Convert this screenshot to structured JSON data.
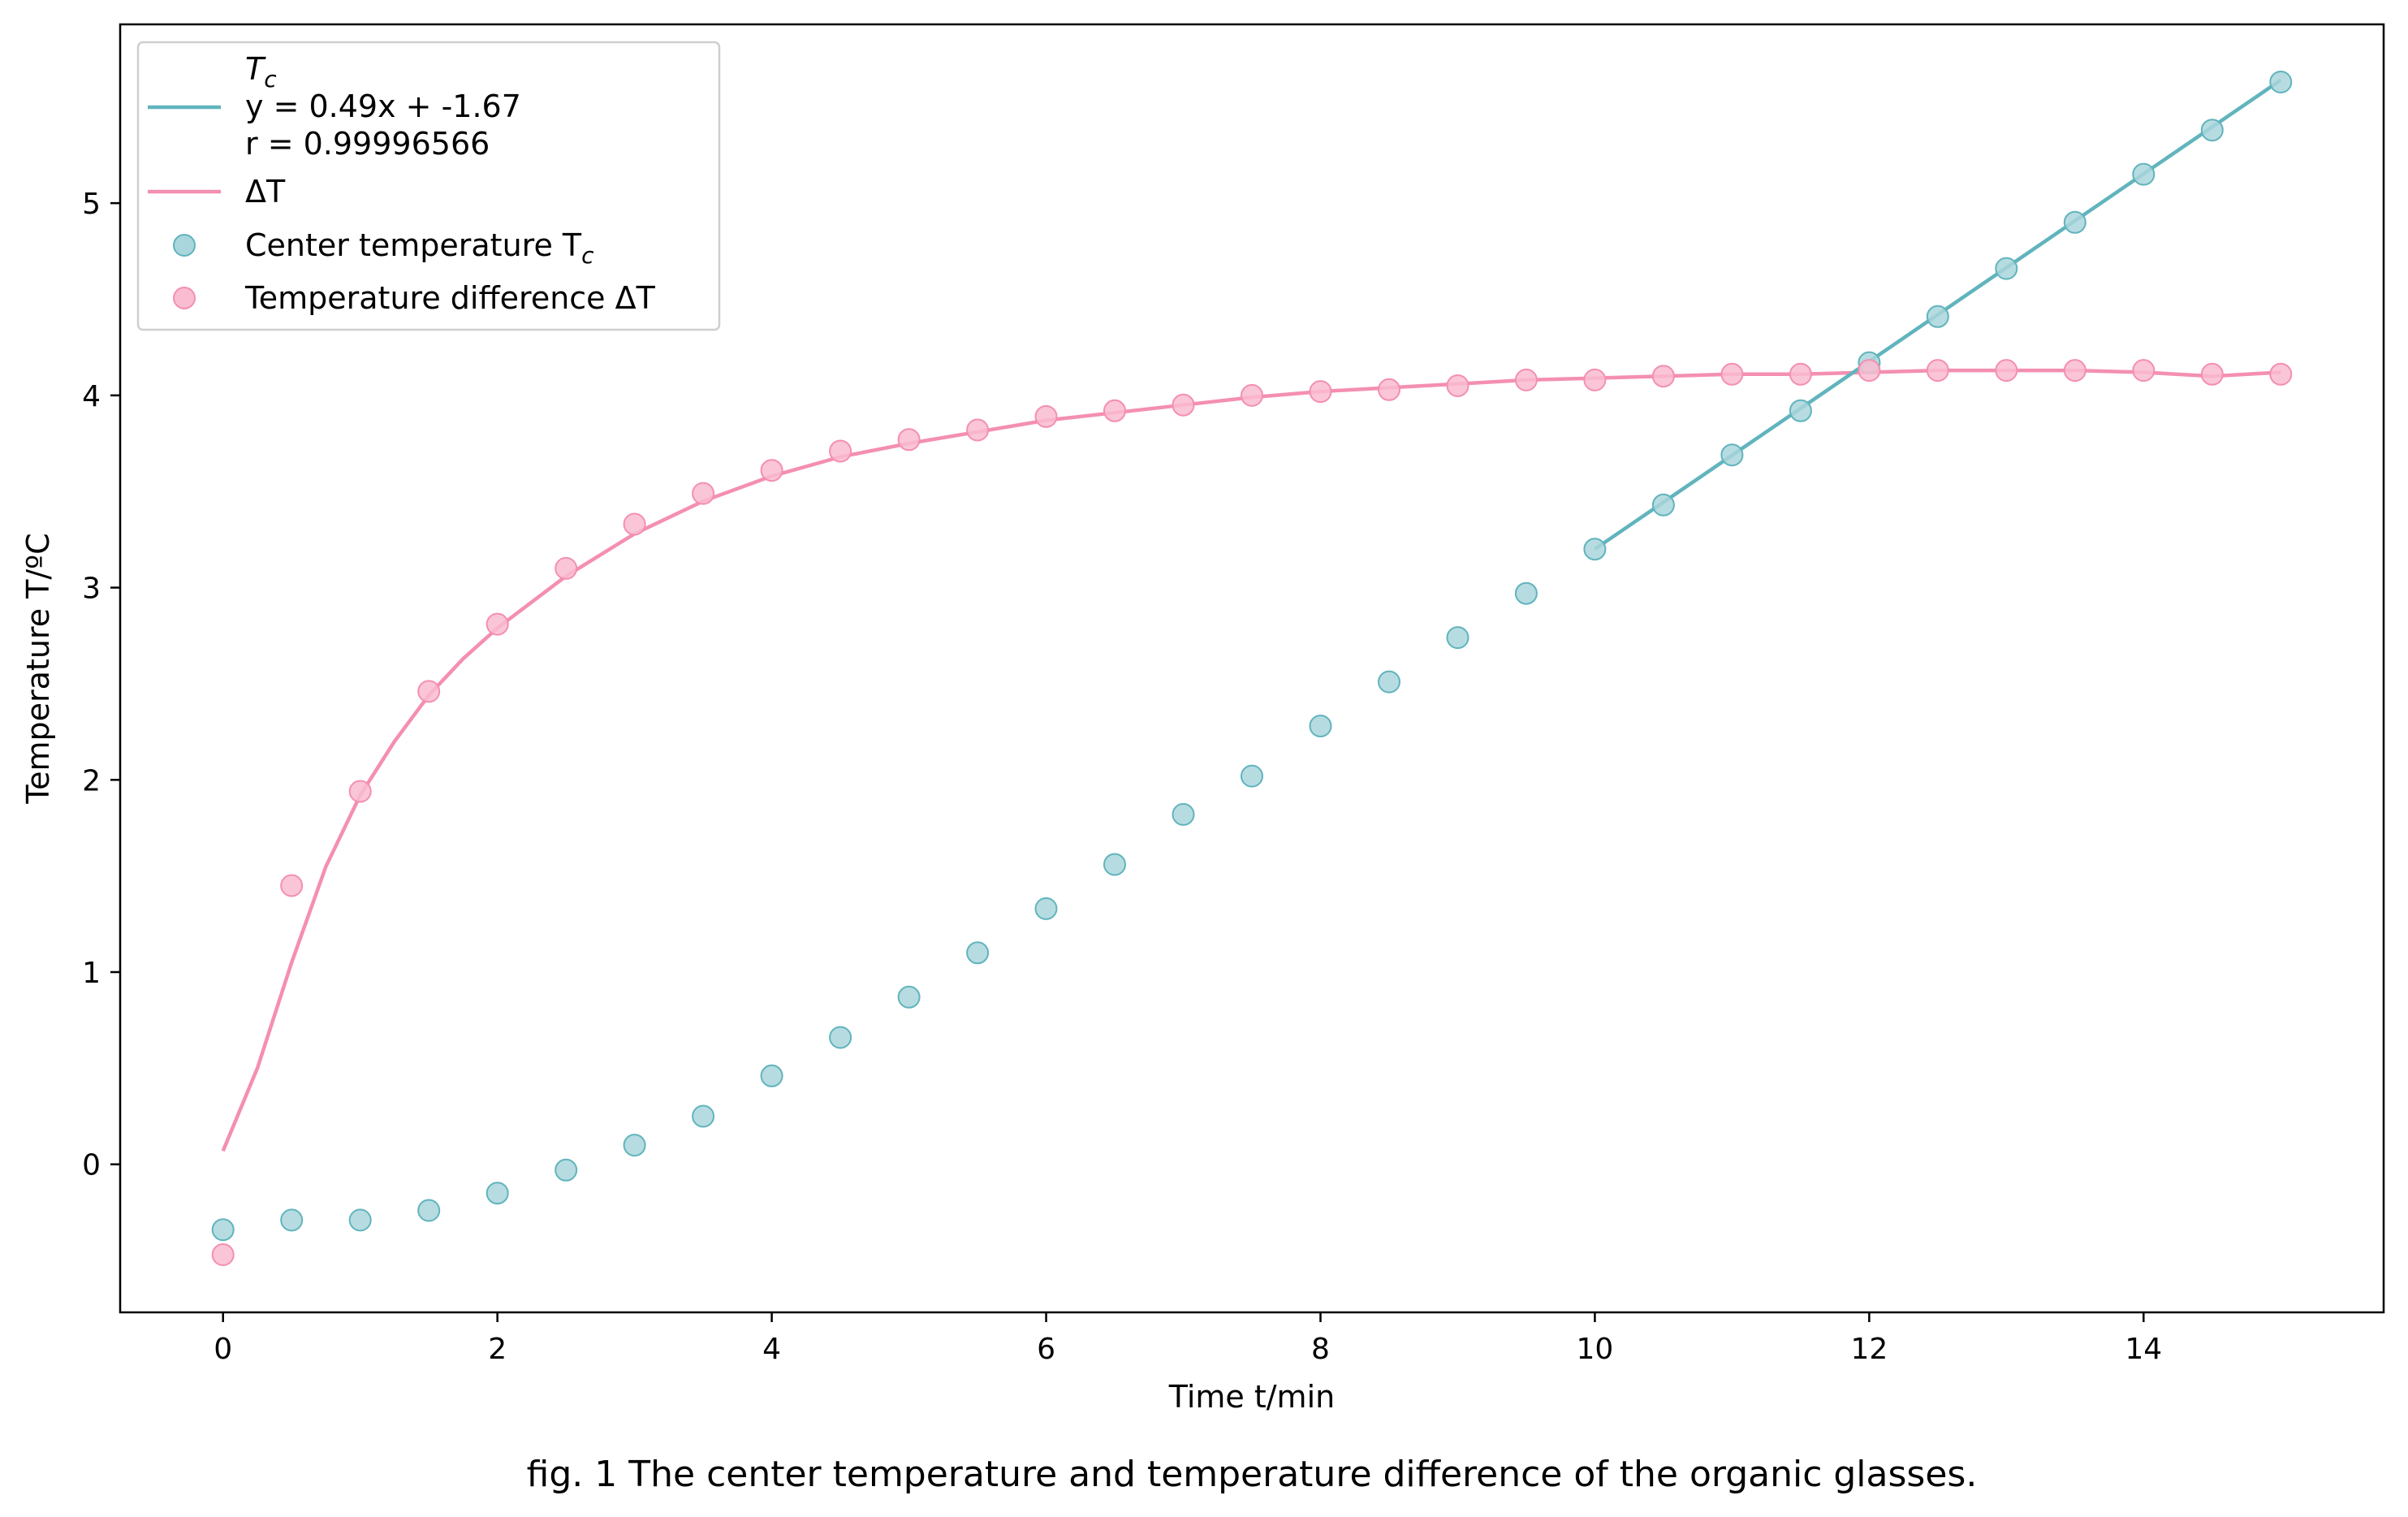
{
  "chart_data": {
    "type": "scatter",
    "caption": "fig. 1 The center temperature and temperature difference of the organic glasses.",
    "xlabel": "Time t/min",
    "ylabel": "Temperature T/ºC",
    "xlim": [
      -0.75,
      15.75
    ],
    "ylim": [
      -0.77,
      5.93
    ],
    "xticks": [
      0,
      2,
      4,
      6,
      8,
      10,
      12,
      14
    ],
    "yticks": [
      0,
      1,
      2,
      3,
      4,
      5
    ],
    "grid": false,
    "legend_position": "top-left",
    "colors": {
      "tc": "#61b4bd",
      "dt": "#f48fb1",
      "tc_marker": "#a9d6dc",
      "dt_marker": "#f9bcd0"
    },
    "legend": {
      "fit_title": "T",
      "fit_title_sub": "c",
      "fit_equation": "y = 0.49x + -1.67",
      "fit_r": "r = 0.99996566",
      "dt_line_label": "ΔT",
      "tc_scatter_label": "Center temperature T",
      "tc_scatter_sub": "c",
      "dt_scatter_label": "Temperature difference ΔT"
    },
    "series": [
      {
        "key": "tc_points",
        "kind": "scatter",
        "x": [
          0,
          0.5,
          1,
          1.5,
          2,
          2.5,
          3,
          3.5,
          4,
          4.5,
          5,
          5.5,
          6,
          6.5,
          7,
          7.5,
          8,
          8.5,
          9,
          9.5,
          10,
          10.5,
          11,
          11.5,
          12,
          12.5,
          13,
          13.5,
          14,
          14.5,
          15
        ],
        "y": [
          -0.34,
          -0.29,
          -0.29,
          -0.24,
          -0.15,
          -0.03,
          0.1,
          0.25,
          0.46,
          0.66,
          0.87,
          1.1,
          1.33,
          1.56,
          1.82,
          2.02,
          2.28,
          2.51,
          2.74,
          2.97,
          3.2,
          3.43,
          3.69,
          3.92,
          4.17,
          4.41,
          4.66,
          4.9,
          5.15,
          5.38,
          5.63
        ]
      },
      {
        "key": "dt_points",
        "kind": "scatter",
        "x": [
          0,
          0.5,
          1,
          1.5,
          2,
          2.5,
          3,
          3.5,
          4,
          4.5,
          5,
          5.5,
          6,
          6.5,
          7,
          7.5,
          8,
          8.5,
          9,
          9.5,
          10,
          10.5,
          11,
          11.5,
          12,
          12.5,
          13,
          13.5,
          14,
          14.5,
          15
        ],
        "y": [
          -0.47,
          1.45,
          1.94,
          2.46,
          2.81,
          3.1,
          3.33,
          3.49,
          3.61,
          3.71,
          3.77,
          3.82,
          3.89,
          3.92,
          3.95,
          4.0,
          4.02,
          4.03,
          4.05,
          4.08,
          4.08,
          4.1,
          4.11,
          4.11,
          4.13,
          4.13,
          4.13,
          4.13,
          4.13,
          4.11,
          4.11
        ]
      },
      {
        "key": "tc_fit",
        "kind": "line",
        "x": [
          10,
          15
        ],
        "y": [
          3.2,
          5.64
        ]
      },
      {
        "key": "dt_curve",
        "kind": "line",
        "x": [
          0,
          0.25,
          0.5,
          0.75,
          1,
          1.25,
          1.5,
          1.75,
          2,
          2.5,
          3,
          3.5,
          4,
          4.5,
          5,
          5.5,
          6,
          6.5,
          7,
          7.5,
          8,
          8.5,
          9,
          9.5,
          10,
          10.5,
          11,
          11.5,
          12,
          12.5,
          13,
          13.5,
          14,
          14.5,
          15
        ],
        "y": [
          0.07,
          0.5,
          1.05,
          1.55,
          1.92,
          2.2,
          2.44,
          2.63,
          2.79,
          3.06,
          3.28,
          3.45,
          3.58,
          3.68,
          3.75,
          3.81,
          3.87,
          3.91,
          3.95,
          3.99,
          4.02,
          4.04,
          4.06,
          4.08,
          4.09,
          4.1,
          4.11,
          4.11,
          4.12,
          4.13,
          4.13,
          4.13,
          4.12,
          4.1,
          4.12
        ]
      }
    ]
  }
}
